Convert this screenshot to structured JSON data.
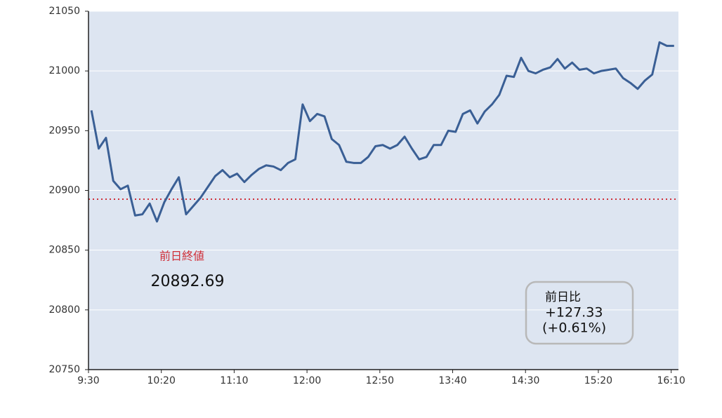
{
  "chart_data": {
    "type": "line",
    "x": [
      572,
      577,
      582,
      587,
      592,
      597,
      602,
      607,
      612,
      617,
      622,
      627,
      632,
      637,
      642,
      647,
      652,
      657,
      662,
      667,
      672,
      677,
      682,
      687,
      692,
      697,
      702,
      707,
      712,
      717,
      722,
      727,
      732,
      737,
      742,
      747,
      752,
      757,
      762,
      767,
      772,
      777,
      782,
      787,
      792,
      797,
      802,
      807,
      812,
      817,
      822,
      827,
      832,
      837,
      842,
      847,
      852,
      857,
      862,
      867,
      872,
      877,
      882,
      887,
      892,
      897,
      902,
      907,
      912,
      917,
      922,
      927,
      932,
      937,
      942,
      947,
      952,
      957,
      962,
      967,
      972
    ],
    "series": [
      {
        "color": "#3a5f95",
        "values": [
          20967,
          20935,
          20944,
          20908,
          20901,
          20904,
          20879,
          20880,
          20889,
          20874,
          20890,
          20901,
          20911,
          20880,
          20887,
          20894,
          20903,
          20912,
          20917,
          20911,
          20914,
          20907,
          20913,
          20918,
          20921,
          20920,
          20917,
          20923,
          20926,
          20972,
          20958,
          20964,
          20962,
          20943,
          20938,
          20924,
          20923,
          20923,
          20928,
          20937,
          20938,
          20935,
          20938,
          20945,
          20935,
          20926,
          20928,
          20938,
          20938,
          20950,
          20949,
          20964,
          20967,
          20956,
          20966,
          20972,
          20980,
          20996,
          20995,
          21011,
          21000,
          20998,
          21001,
          21003,
          21010,
          21002,
          21007,
          21001,
          21002,
          20998,
          21000,
          21001,
          21002,
          20994,
          20990,
          20985,
          20992,
          20997,
          21024,
          21021,
          21021
        ]
      }
    ],
    "xlim": [
      570,
      975
    ],
    "xticks": [
      {
        "value": 570,
        "label": "9:30"
      },
      {
        "value": 620,
        "label": "10:20"
      },
      {
        "value": 670,
        "label": "11:10"
      },
      {
        "value": 720,
        "label": "12:00"
      },
      {
        "value": 770,
        "label": "12:50"
      },
      {
        "value": 820,
        "label": "13:40"
      },
      {
        "value": 870,
        "label": "14:30"
      },
      {
        "value": 920,
        "label": "15:20"
      },
      {
        "value": 970,
        "label": "16:10"
      }
    ],
    "ylim": [
      20750,
      21050
    ],
    "yticks": [
      20750,
      20800,
      20850,
      20900,
      20950,
      21000,
      21050
    ],
    "grid": true,
    "reference_line": {
      "value": 20892.69,
      "label": "前日終値",
      "color": "#d0303a"
    },
    "change_box": {
      "title": "前日比",
      "change": "+127.33",
      "percent": "(+0.61%)"
    }
  }
}
